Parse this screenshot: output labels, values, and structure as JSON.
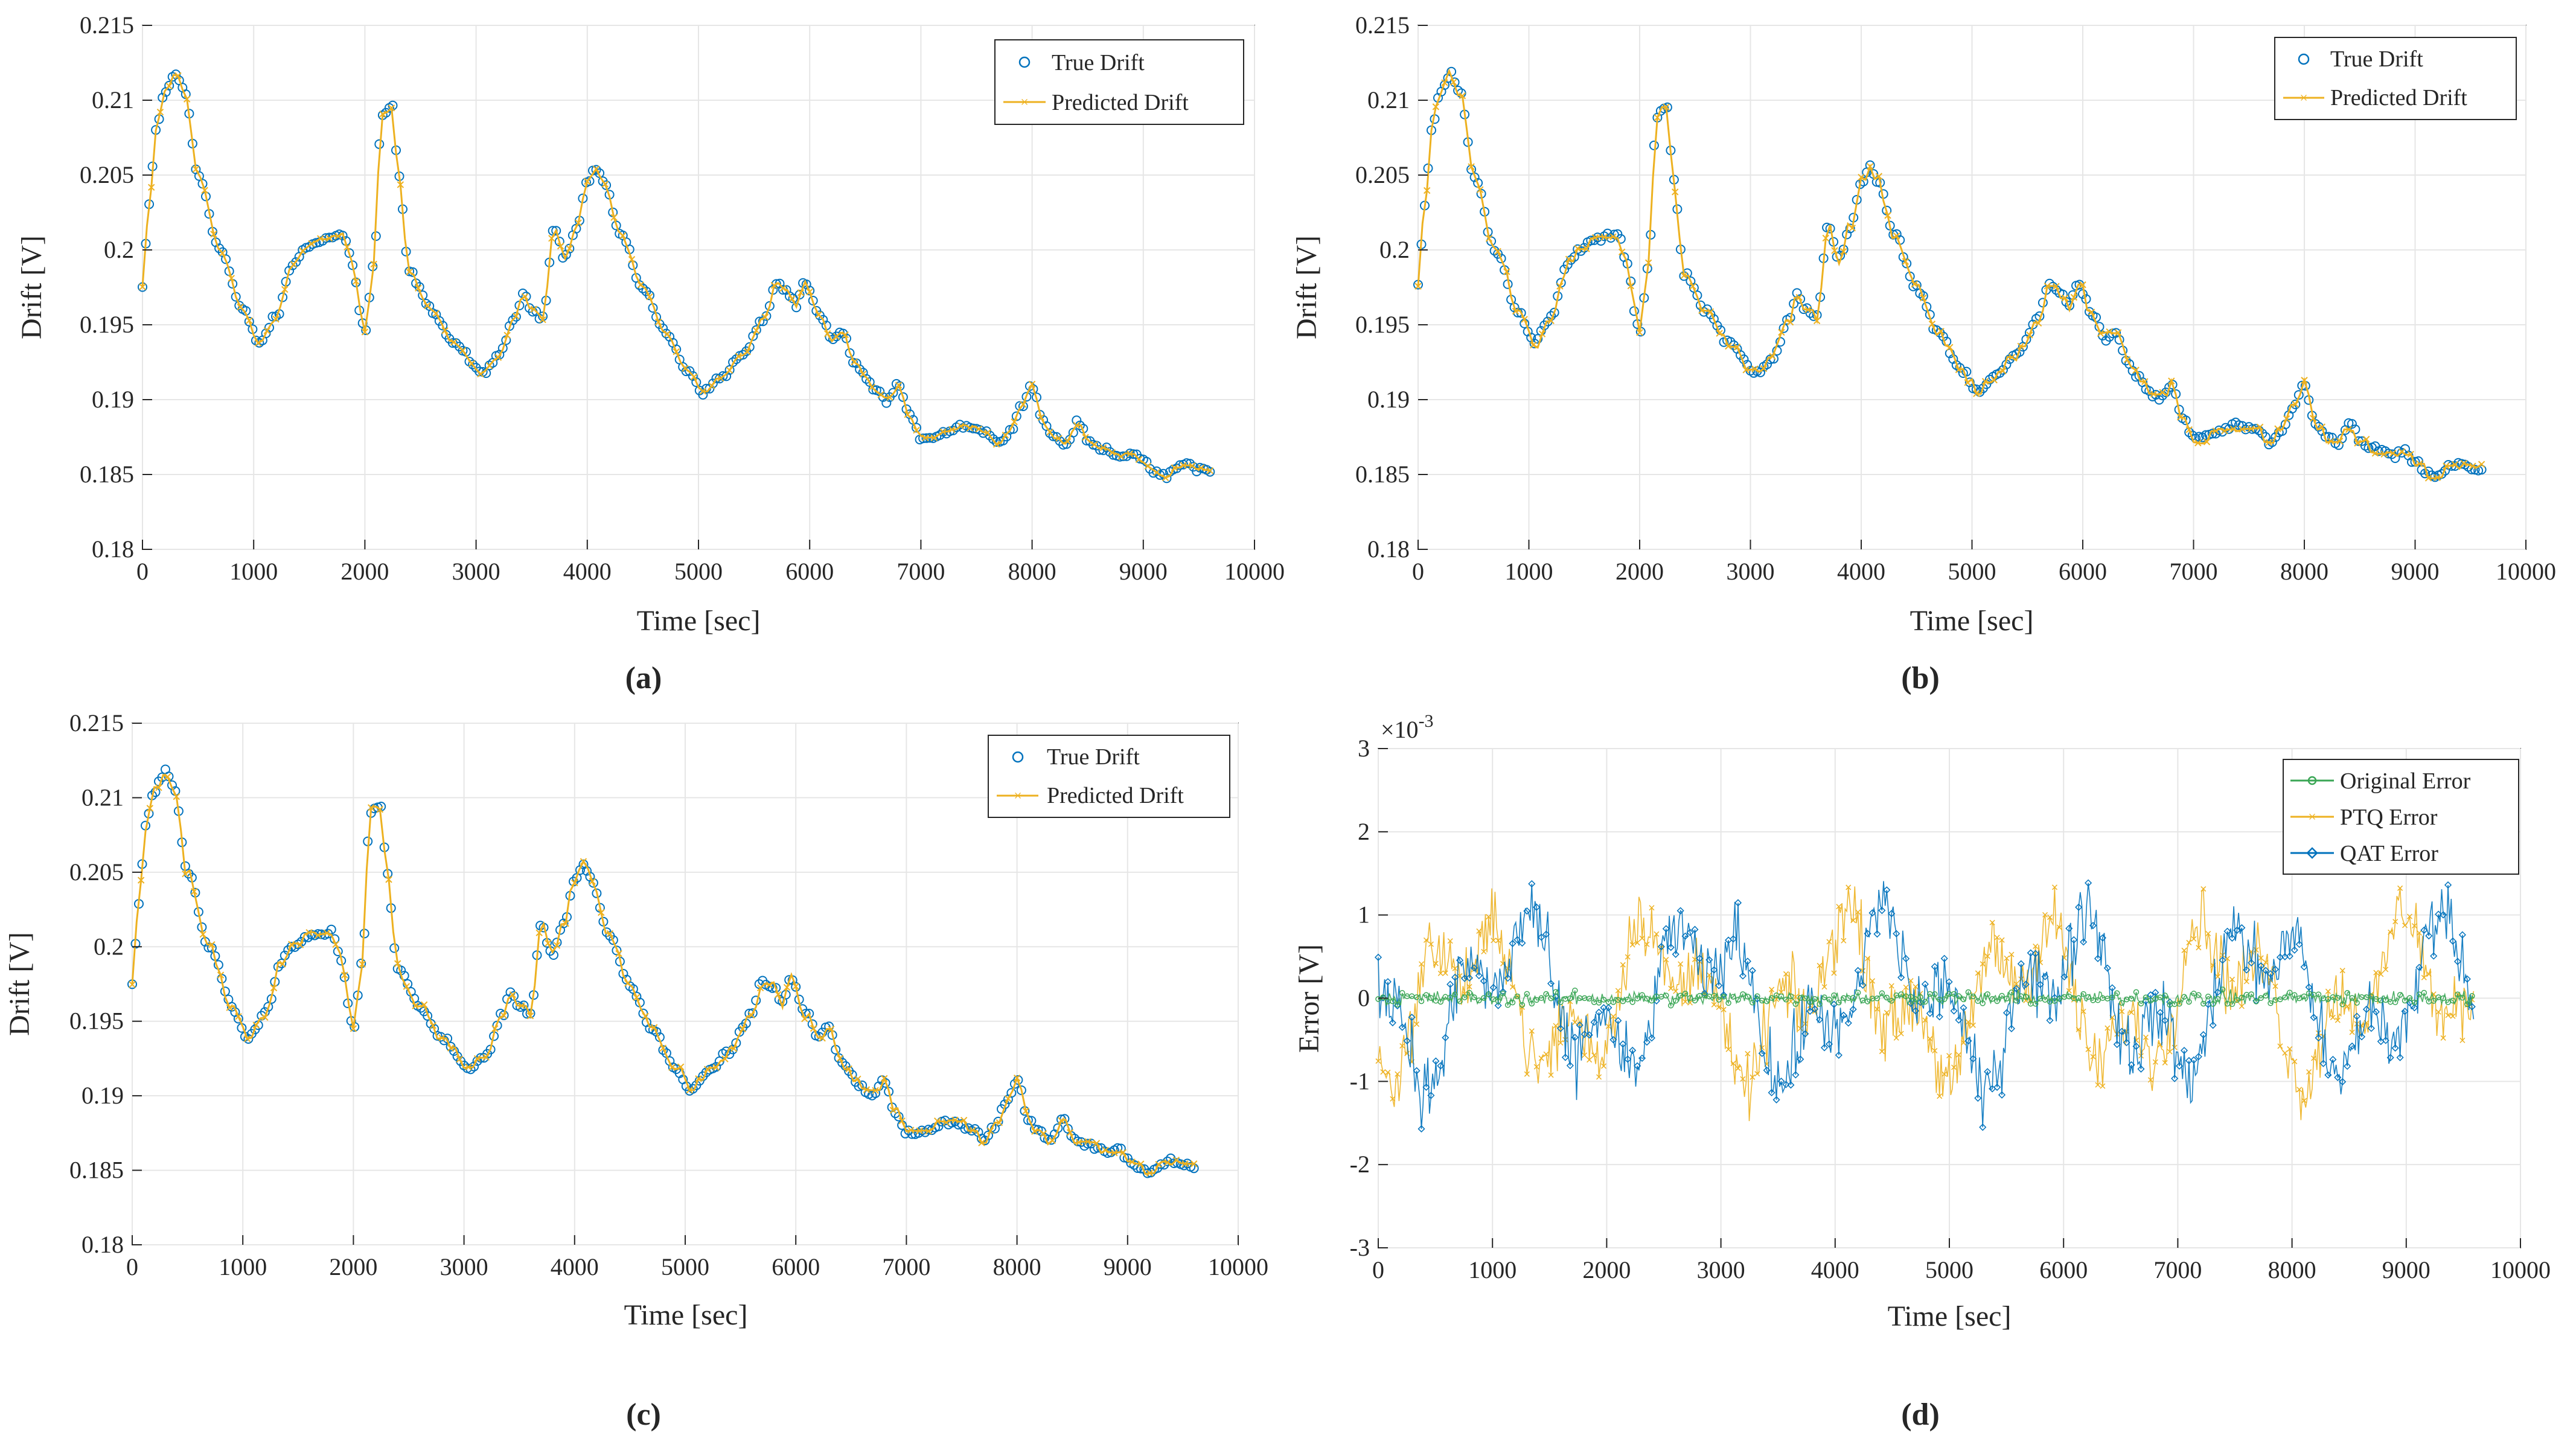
{
  "chart_data": [
    {
      "id": "a",
      "type": "line",
      "caption": "(a)",
      "xlabel": "Time [sec]",
      "ylabel": "Drift [V]",
      "xlim": [
        0,
        10000
      ],
      "ylim": [
        0.18,
        0.215
      ],
      "xticks": [
        0,
        1000,
        2000,
        3000,
        4000,
        5000,
        6000,
        7000,
        8000,
        9000,
        10000
      ],
      "xtick_labels": [
        "0",
        "1000",
        "2000",
        "3000",
        "4000",
        "5000",
        "6000",
        "7000",
        "8000",
        "9000",
        "10000"
      ],
      "yticks": [
        0.18,
        0.185,
        0.19,
        0.195,
        0.2,
        0.205,
        0.21,
        0.215
      ],
      "ytick_labels": [
        "0.18",
        "0.185",
        "0.19",
        "0.195",
        "0.2",
        "0.205",
        "0.21",
        "0.215"
      ],
      "grid": true,
      "legend_position": "top-right",
      "prediction_step": 0,
      "series": [
        {
          "name": "True Drift",
          "color": "#0072BD",
          "marker": "circle",
          "role": "truth"
        },
        {
          "name": "Predicted Drift",
          "color": "#EDB120",
          "marker": "x",
          "role": "prediction"
        }
      ]
    },
    {
      "id": "b",
      "type": "line",
      "caption": "(b)",
      "xlabel": "Time [sec]",
      "ylabel": "Drift [V]",
      "xlim": [
        0,
        10000
      ],
      "ylim": [
        0.18,
        0.215
      ],
      "xticks": [
        0,
        1000,
        2000,
        3000,
        4000,
        5000,
        6000,
        7000,
        8000,
        9000,
        10000
      ],
      "xtick_labels": [
        "0",
        "1000",
        "2000",
        "3000",
        "4000",
        "5000",
        "6000",
        "7000",
        "8000",
        "9000",
        "10000"
      ],
      "yticks": [
        0.18,
        0.185,
        0.19,
        0.195,
        0.2,
        0.205,
        0.21,
        0.215
      ],
      "ytick_labels": [
        "0.18",
        "0.185",
        "0.19",
        "0.195",
        "0.2",
        "0.205",
        "0.21",
        "0.215"
      ],
      "grid": true,
      "legend_position": "top-right",
      "prediction_step": 0.0008,
      "series": [
        {
          "name": "True Drift",
          "color": "#0072BD",
          "marker": "circle",
          "role": "truth"
        },
        {
          "name": "Predicted Drift",
          "color": "#EDB120",
          "marker": "x",
          "role": "prediction"
        }
      ]
    },
    {
      "id": "c",
      "type": "line",
      "caption": "(c)",
      "xlabel": "Time [sec]",
      "ylabel": "Drift [V]",
      "xlim": [
        0,
        10000
      ],
      "ylim": [
        0.18,
        0.215
      ],
      "xticks": [
        0,
        1000,
        2000,
        3000,
        4000,
        5000,
        6000,
        7000,
        8000,
        9000,
        10000
      ],
      "xtick_labels": [
        "0",
        "1000",
        "2000",
        "3000",
        "4000",
        "5000",
        "6000",
        "7000",
        "8000",
        "9000",
        "10000"
      ],
      "yticks": [
        0.18,
        0.185,
        0.19,
        0.195,
        0.2,
        0.205,
        0.21,
        0.215
      ],
      "ytick_labels": [
        "0.18",
        "0.185",
        "0.19",
        "0.195",
        "0.2",
        "0.205",
        "0.21",
        "0.215"
      ],
      "grid": true,
      "legend_position": "top-right",
      "prediction_step": 0.0007,
      "series": [
        {
          "name": "True Drift",
          "color": "#0072BD",
          "marker": "circle",
          "role": "truth"
        },
        {
          "name": "Predicted Drift",
          "color": "#EDB120",
          "marker": "x",
          "role": "prediction"
        }
      ]
    },
    {
      "id": "d",
      "type": "line",
      "caption": "(d)",
      "xlabel": "Time [sec]",
      "ylabel": "Error [V]",
      "exponent_label": "×10",
      "exponent_power": "-3",
      "xlim": [
        0,
        10000
      ],
      "ylim": [
        -3,
        3
      ],
      "xticks": [
        0,
        1000,
        2000,
        3000,
        4000,
        5000,
        6000,
        7000,
        8000,
        9000,
        10000
      ],
      "xtick_labels": [
        "0",
        "1000",
        "2000",
        "3000",
        "4000",
        "5000",
        "6000",
        "7000",
        "8000",
        "9000",
        "10000"
      ],
      "yticks": [
        -3,
        -2,
        -1,
        0,
        1,
        2,
        3
      ],
      "ytick_labels": [
        "-3",
        "-2",
        "-1",
        "0",
        "1",
        "2",
        "3"
      ],
      "grid": true,
      "legend_position": "top-right",
      "series": [
        {
          "name": "Original Error",
          "color": "#3AA655",
          "marker": "circle",
          "amplitude": 0.12
        },
        {
          "name": "PTQ Error",
          "color": "#EDB120",
          "marker": "x",
          "amplitude": 1.1
        },
        {
          "name": "QAT Error",
          "color": "#0072BD",
          "marker": "diamond",
          "amplitude": 1.15
        }
      ]
    }
  ],
  "drift_keypoints": {
    "t": [
      0,
      60,
      120,
      200,
      300,
      380,
      500,
      700,
      900,
      1050,
      1200,
      1350,
      1450,
      1600,
      1800,
      1900,
      1950,
      2000,
      2080,
      2150,
      2250,
      2300,
      2400,
      2600,
      2800,
      3050,
      3200,
      3350,
      3420,
      3500,
      3600,
      3700,
      3800,
      3900,
      4000,
      4080,
      4150,
      4300,
      4500,
      4700,
      4900,
      5050,
      5200,
      5400,
      5600,
      5700,
      5800,
      5880,
      5950,
      6100,
      6200,
      6300,
      6400,
      6500,
      6600,
      6700,
      6800,
      6900,
      7000,
      7100,
      7200,
      7400,
      7600,
      7700,
      7800,
      7900,
      8000,
      8100,
      8200,
      8300,
      8420,
      8500,
      8600,
      8700,
      8800,
      8900,
      9000,
      9100,
      9200,
      9300,
      9400,
      9500,
      9600
    ],
    "v": [
      0.1975,
      0.203,
      0.208,
      0.2105,
      0.2118,
      0.2105,
      0.205,
      0.2,
      0.196,
      0.1938,
      0.1955,
      0.199,
      0.2,
      0.2007,
      0.201,
      0.199,
      0.196,
      0.1945,
      0.199,
      0.209,
      0.2095,
      0.205,
      0.1985,
      0.196,
      0.1938,
      0.1918,
      0.1928,
      0.1955,
      0.197,
      0.196,
      0.1955,
      0.2015,
      0.1995,
      0.2015,
      0.2045,
      0.2055,
      0.2045,
      0.201,
      0.1975,
      0.1945,
      0.192,
      0.1905,
      0.1915,
      0.193,
      0.1955,
      0.1978,
      0.1972,
      0.1962,
      0.1978,
      0.1955,
      0.194,
      0.1945,
      0.1925,
      0.1915,
      0.1905,
      0.19,
      0.191,
      0.1888,
      0.1875,
      0.1875,
      0.1878,
      0.1883,
      0.1878,
      0.187,
      0.188,
      0.1895,
      0.191,
      0.1885,
      0.1875,
      0.187,
      0.1885,
      0.1872,
      0.1868,
      0.1866,
      0.1862,
      0.1865,
      0.1858,
      0.1852,
      0.1848,
      0.1855,
      0.1857,
      0.1854,
      0.1852
    ]
  }
}
